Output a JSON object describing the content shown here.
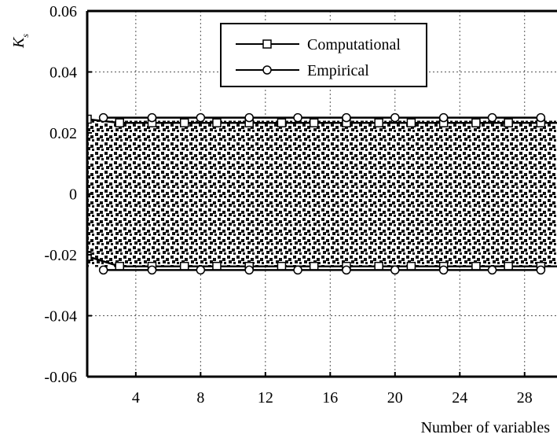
{
  "chart_data": {
    "type": "line",
    "title": "",
    "xlabel": "Number of variables",
    "ylabel": "K",
    "ylabel_subscript": "s",
    "xlim": [
      1,
      30
    ],
    "ylim": [
      -0.06,
      0.06
    ],
    "x_ticks": [
      4,
      8,
      12,
      16,
      20,
      24,
      28
    ],
    "y_ticks": [
      0.06,
      0.04,
      0.02,
      0,
      -0.02,
      -0.04,
      -0.06
    ],
    "y_tick_labels": [
      "0.06",
      "0.04",
      "0.02",
      "0",
      "-0.02",
      "-0.04",
      "-0.06"
    ],
    "grid": true,
    "legend_position": "top-center",
    "shaded_region": {
      "pattern": "dotted",
      "upper": 0.024,
      "lower": -0.024
    },
    "series": [
      {
        "name": "Computational",
        "marker": "square",
        "upper": {
          "x": [
            1,
            3,
            5,
            7,
            9,
            11,
            13,
            15,
            17,
            19,
            21,
            23,
            25,
            27,
            29,
            30
          ],
          "y": [
            0.0245,
            0.0233,
            0.0233,
            0.0233,
            0.0233,
            0.0233,
            0.0233,
            0.0233,
            0.0233,
            0.0233,
            0.0233,
            0.0233,
            0.0233,
            0.0233,
            0.0233,
            0.0233
          ]
        },
        "lower": {
          "x": [
            1,
            3,
            5,
            7,
            9,
            11,
            13,
            15,
            17,
            19,
            21,
            23,
            25,
            27,
            29,
            30
          ],
          "y": [
            -0.0205,
            -0.0238,
            -0.0238,
            -0.0238,
            -0.0238,
            -0.0238,
            -0.0238,
            -0.0238,
            -0.0238,
            -0.0238,
            -0.0238,
            -0.0238,
            -0.0238,
            -0.0238,
            -0.0238,
            -0.0238
          ]
        }
      },
      {
        "name": "Empirical",
        "marker": "circle",
        "upper": {
          "x": [
            2,
            5,
            8,
            11,
            14,
            17,
            20,
            23,
            26,
            29
          ],
          "y": [
            0.025,
            0.025,
            0.025,
            0.025,
            0.025,
            0.025,
            0.025,
            0.025,
            0.025,
            0.025
          ]
        },
        "lower": {
          "x": [
            2,
            5,
            8,
            11,
            14,
            17,
            20,
            23,
            26,
            29
          ],
          "y": [
            -0.025,
            -0.025,
            -0.025,
            -0.025,
            -0.025,
            -0.025,
            -0.025,
            -0.025,
            -0.025,
            -0.025
          ]
        }
      }
    ]
  }
}
